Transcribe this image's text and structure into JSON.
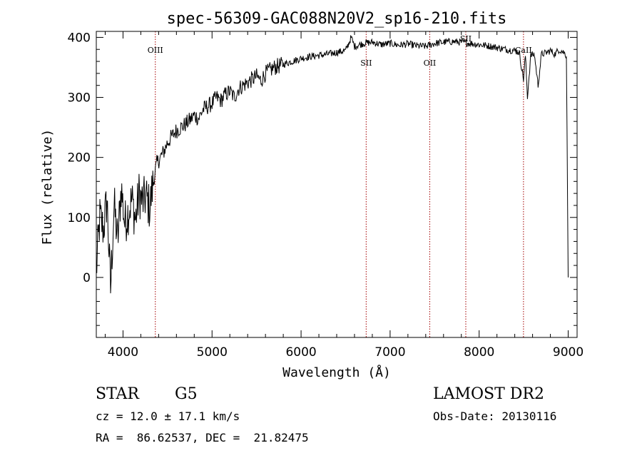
{
  "chart_data": {
    "type": "line",
    "title": "spec-56309-GAC088N20V2_sp16-210.fits",
    "xlabel": "Wavelength (Å)",
    "ylabel": "Flux (relative)",
    "xlim": [
      3700,
      9100
    ],
    "ylim": [
      -100,
      410
    ],
    "xticks": [
      4000,
      5000,
      6000,
      7000,
      8000,
      9000
    ],
    "xtick_labels": [
      "4000",
      "5000",
      "6000",
      "7000",
      "8000",
      "9000"
    ],
    "yticks": [
      0,
      100,
      200,
      300,
      400
    ],
    "ytick_labels": [
      "0",
      "100",
      "200",
      "300",
      "400"
    ],
    "grid": false,
    "series": [
      {
        "name": "spectrum",
        "x": [
          3700,
          3740,
          3780,
          3820,
          3860,
          3900,
          3940,
          3980,
          4020,
          4060,
          4100,
          4140,
          4180,
          4220,
          4260,
          4300,
          4340,
          4380,
          4420,
          4460,
          4500,
          4550,
          4600,
          4650,
          4700,
          4750,
          4800,
          4850,
          4900,
          4950,
          5000,
          5050,
          5100,
          5150,
          5200,
          5250,
          5300,
          5350,
          5400,
          5450,
          5500,
          5550,
          5600,
          5650,
          5700,
          5800,
          5900,
          6000,
          6100,
          6200,
          6300,
          6400,
          6500,
          6563,
          6600,
          6700,
          6800,
          6900,
          7000,
          7100,
          7200,
          7300,
          7400,
          7500,
          7600,
          7700,
          7800,
          7900,
          8000,
          8100,
          8200,
          8300,
          8400,
          8450,
          8498,
          8520,
          8542,
          8580,
          8620,
          8662,
          8700,
          8750,
          8800,
          8850,
          8900,
          8950,
          8980,
          9000
        ],
        "y": [
          10,
          100,
          80,
          130,
          -20,
          120,
          60,
          150,
          90,
          110,
          130,
          95,
          140,
          125,
          135,
          115,
          160,
          190,
          200,
          210,
          225,
          235,
          245,
          250,
          255,
          262,
          270,
          265,
          280,
          285,
          290,
          300,
          295,
          305,
          310,
          300,
          315,
          320,
          325,
          330,
          335,
          328,
          340,
          345,
          350,
          355,
          360,
          365,
          368,
          370,
          372,
          375,
          378,
          400,
          385,
          390,
          392,
          388,
          390,
          387,
          389,
          386,
          385,
          390,
          392,
          393,
          392,
          390,
          388,
          386,
          383,
          380,
          378,
          375,
          330,
          370,
          300,
          370,
          372,
          320,
          372,
          374,
          378,
          372,
          380,
          375,
          370,
          0
        ]
      }
    ],
    "lines": [
      {
        "label": "OIII",
        "x": 4363
      },
      {
        "label": "SII",
        "x": 6731
      },
      {
        "label": "OII",
        "x": 7445
      },
      {
        "label": "SII",
        "x": 7850
      },
      {
        "label": "CaII",
        "x": 8498
      }
    ]
  },
  "info": {
    "class": "STAR",
    "subclass": "G5",
    "cz": "cz = 12.0 ± 17.1 km/s",
    "radec": "RA =  86.62537, DEC =  21.82475",
    "survey": "LAMOST DR2",
    "obsdate": "Obs-Date: 20130116"
  },
  "colors": {
    "spectrum": "#000000",
    "line_marker": "#a40000"
  }
}
